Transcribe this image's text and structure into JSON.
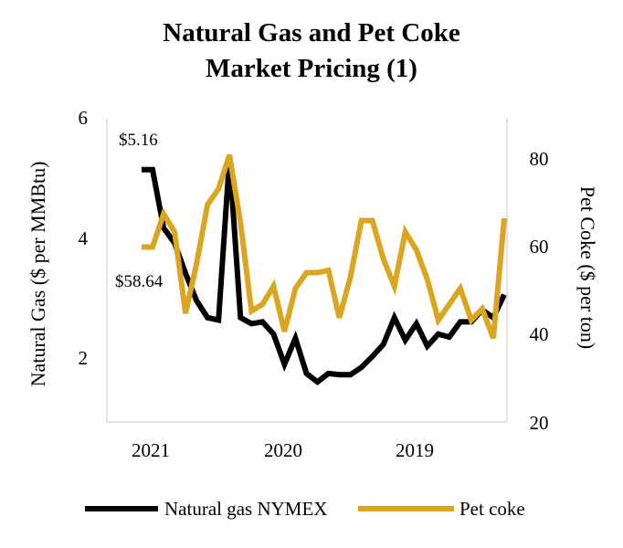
{
  "chart_data": {
    "type": "line",
    "title": "Natural Gas and Pet Coke",
    "subtitle": "Market Pricing (1)",
    "x_tick_labels": [
      "2021",
      "2020",
      "2019"
    ],
    "y_left": {
      "label": "Natural Gas ($ per MMBtu)",
      "ticks": [
        2,
        4,
        6
      ],
      "ylim": [
        1,
        6
      ]
    },
    "y_right": {
      "label": "Pet Coke ($ per ton)",
      "ticks": [
        20,
        40,
        60,
        80
      ],
      "ylim": [
        20,
        87
      ]
    },
    "annotations": [
      {
        "text": "$5.16",
        "series": "Natural gas NYMEX",
        "point_index": 0
      },
      {
        "text": "$58.64",
        "series": "Pet coke",
        "point_index": 0
      }
    ],
    "legend_position": "bottom",
    "series": [
      {
        "name": "Natural gas NYMEX",
        "axis": "left",
        "color": "#000000",
        "values": [
          5.16,
          5.16,
          4.2,
          3.95,
          3.45,
          3.0,
          2.72,
          2.68,
          5.35,
          2.72,
          2.62,
          2.65,
          2.45,
          1.95,
          2.38,
          1.8,
          1.66,
          1.8,
          1.78,
          1.78,
          1.9,
          2.08,
          2.28,
          2.72,
          2.35,
          2.62,
          2.25,
          2.45,
          2.4,
          2.65,
          2.65,
          2.85,
          2.72,
          3.1
        ]
      },
      {
        "name": "Pet coke",
        "axis": "right",
        "color": "#DAA520",
        "values": [
          58.64,
          58.64,
          66.0,
          62.0,
          44.0,
          55.0,
          68.0,
          71.5,
          79.0,
          64.0,
          44.5,
          46.0,
          50.0,
          40.0,
          49.5,
          53.0,
          53.0,
          53.5,
          43.0,
          52.0,
          64.5,
          64.5,
          56.0,
          50.0,
          62.0,
          58.0,
          51.5,
          42.5,
          46.0,
          49.5,
          42.5,
          45.0,
          38.5,
          65.0
        ]
      }
    ]
  }
}
